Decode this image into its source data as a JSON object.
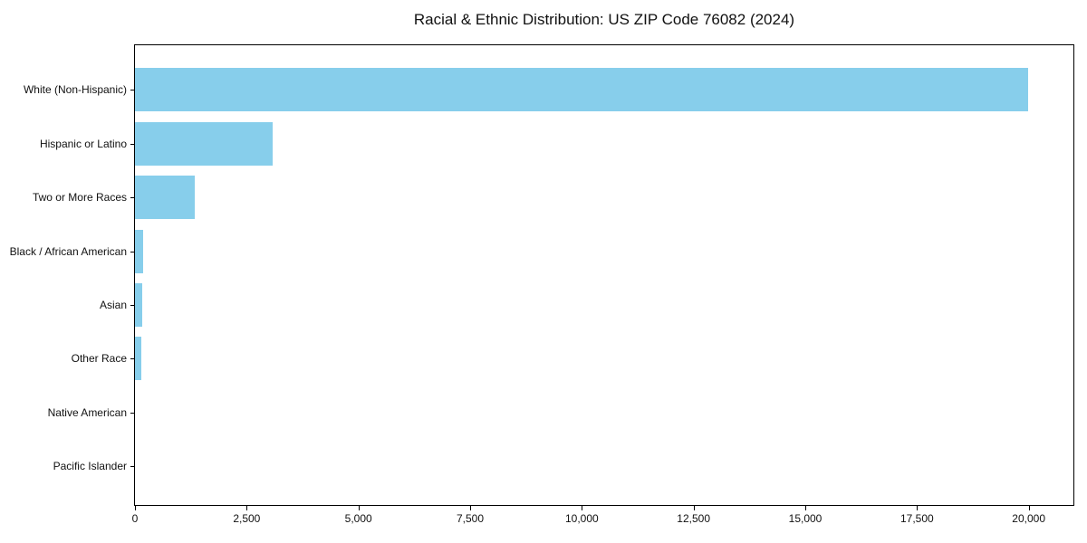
{
  "title": "Racial & Ethnic Distribution: US ZIP Code 76082 (2024)",
  "colors": {
    "bar": "#87CEEB",
    "spine": "#000000",
    "text": "#111111",
    "background": "#FFFFFF"
  },
  "chart_data": {
    "type": "bar",
    "orientation": "horizontal",
    "title": "Racial & Ethnic Distribution: US ZIP Code 76082 (2024)",
    "xlabel": "",
    "ylabel": "",
    "categories": [
      "White (Non-Hispanic)",
      "Hispanic or Latino",
      "Two or More Races",
      "Black / African American",
      "Asian",
      "Other Race",
      "Native American",
      "Pacific Islander"
    ],
    "values": [
      19980,
      3075,
      1340,
      180,
      165,
      145,
      0,
      0
    ],
    "xlim": [
      0,
      21000
    ],
    "x_ticks": [
      0,
      2500,
      5000,
      7500,
      10000,
      12500,
      15000,
      17500,
      20000
    ],
    "x_tick_labels": [
      "0",
      "2,500",
      "5,000",
      "7,500",
      "10,000",
      "12,500",
      "15,000",
      "17,500",
      "20,000"
    ],
    "grid": false,
    "legend": "none"
  }
}
